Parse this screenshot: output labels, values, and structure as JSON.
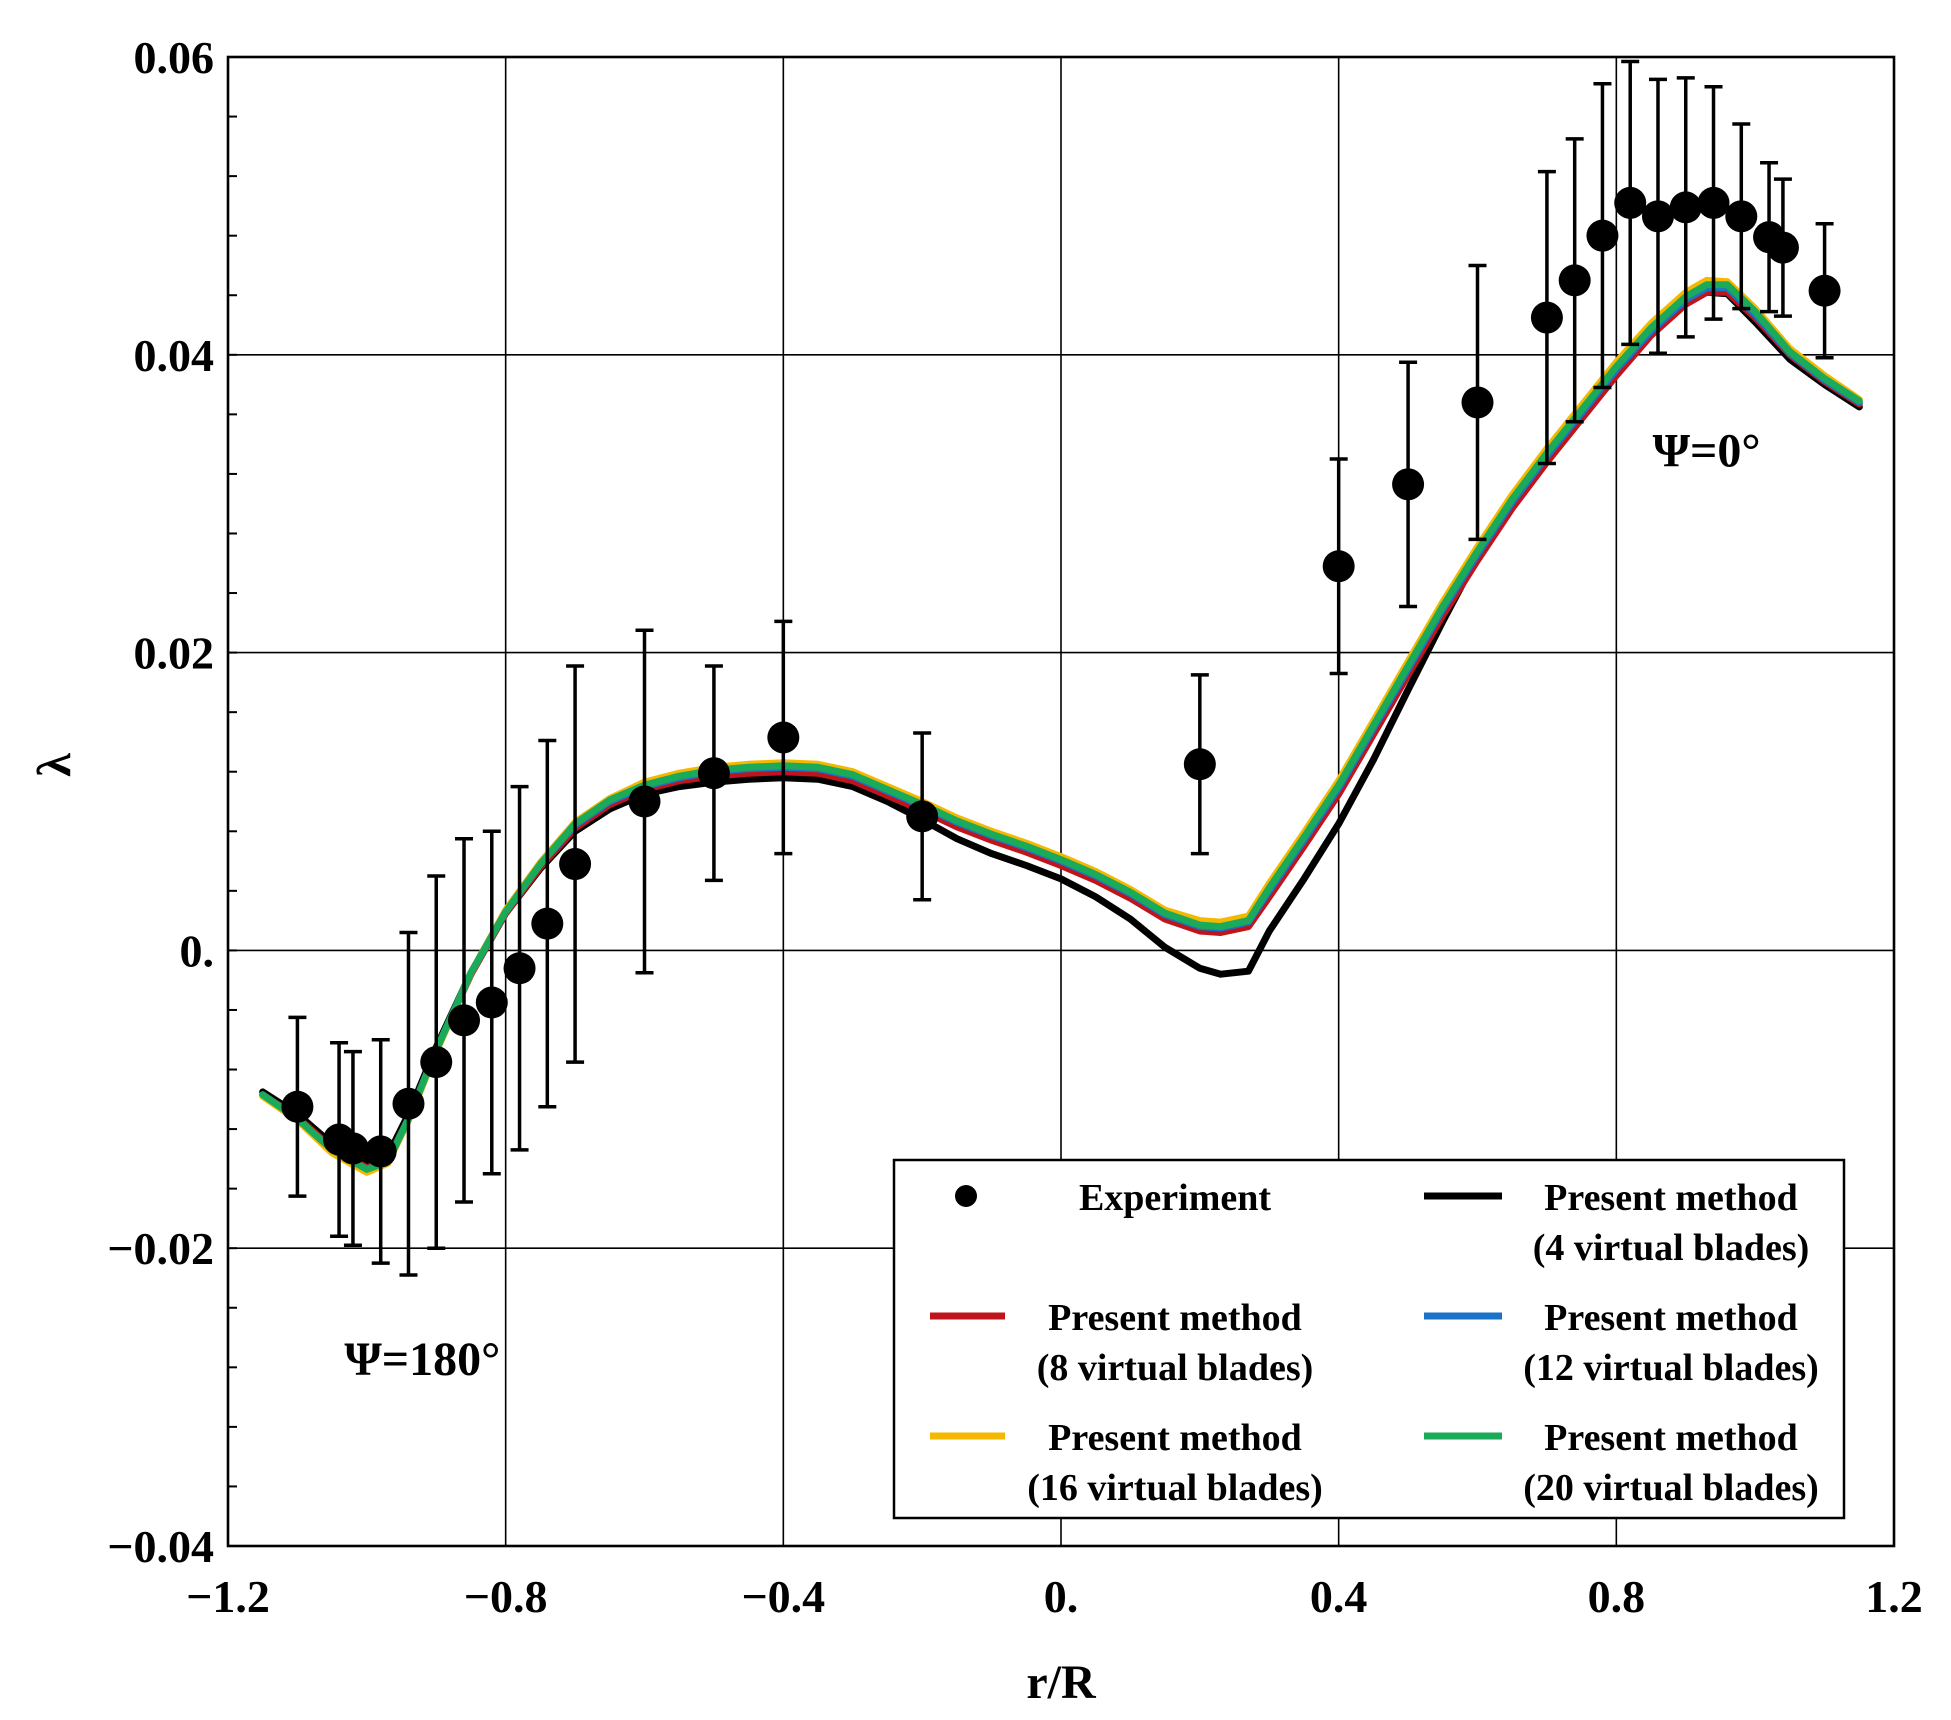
{
  "chart_data": {
    "type": "line",
    "title": "",
    "xlabel": "r/R",
    "ylabel": "λ",
    "xlim": [
      -1.2,
      1.2
    ],
    "ylim": [
      -0.04,
      0.06
    ],
    "grid": true,
    "x_ticks": [
      -1.2,
      -0.8,
      -0.4,
      0.0,
      0.4,
      0.8,
      1.2
    ],
    "x_tick_labels": [
      "−1.2",
      "−0.8",
      "−0.4",
      "0.",
      "0.4",
      "0.8",
      "1.2"
    ],
    "y_ticks": [
      -0.04,
      -0.02,
      0.0,
      0.02,
      0.04,
      0.06
    ],
    "y_tick_labels": [
      "−0.04",
      "−0.02",
      "0.",
      "0.02",
      "0.04",
      "0.06"
    ],
    "legend_position": "bottom-right",
    "annotations": [
      {
        "text": "Ψ=0°",
        "x": 0.93,
        "y": 0.0325
      },
      {
        "text": "Ψ=180°",
        "x": -0.92,
        "y": -0.0285
      }
    ],
    "experiment": {
      "name": "Experiment",
      "points": [
        {
          "x": -1.1,
          "y": -0.0105,
          "err": 0.006
        },
        {
          "x": -1.04,
          "y": -0.0127,
          "err": 0.0065
        },
        {
          "x": -1.02,
          "y": -0.0133,
          "err": 0.0065
        },
        {
          "x": -0.98,
          "y": -0.0135,
          "err": 0.0075
        },
        {
          "x": -0.94,
          "y": -0.0103,
          "err": 0.0115
        },
        {
          "x": -0.9,
          "y": -0.0075,
          "err": 0.0125
        },
        {
          "x": -0.86,
          "y": -0.0047,
          "err": 0.0122
        },
        {
          "x": -0.82,
          "y": -0.0035,
          "err": 0.0115
        },
        {
          "x": -0.78,
          "y": -0.0012,
          "err": 0.0122
        },
        {
          "x": -0.74,
          "y": 0.0018,
          "err": 0.0123
        },
        {
          "x": -0.7,
          "y": 0.0058,
          "err": 0.0133
        },
        {
          "x": -0.6,
          "y": 0.01,
          "err": 0.0115
        },
        {
          "x": -0.5,
          "y": 0.0119,
          "err": 0.0072
        },
        {
          "x": -0.4,
          "y": 0.0143,
          "err": 0.0078
        },
        {
          "x": -0.2,
          "y": 0.009,
          "err": 0.0056
        },
        {
          "x": 0.2,
          "y": 0.0125,
          "err": 0.006
        },
        {
          "x": 0.4,
          "y": 0.0258,
          "err": 0.0072
        },
        {
          "x": 0.5,
          "y": 0.0313,
          "err": 0.0082
        },
        {
          "x": 0.6,
          "y": 0.0368,
          "err": 0.0092
        },
        {
          "x": 0.7,
          "y": 0.0425,
          "err": 0.0098
        },
        {
          "x": 0.74,
          "y": 0.045,
          "err": 0.0095
        },
        {
          "x": 0.78,
          "y": 0.048,
          "err": 0.0102
        },
        {
          "x": 0.82,
          "y": 0.0502,
          "err": 0.0095
        },
        {
          "x": 0.86,
          "y": 0.0493,
          "err": 0.0092
        },
        {
          "x": 0.9,
          "y": 0.0499,
          "err": 0.0087
        },
        {
          "x": 0.94,
          "y": 0.0502,
          "err": 0.0078
        },
        {
          "x": 0.98,
          "y": 0.0493,
          "err": 0.0062
        },
        {
          "x": 1.02,
          "y": 0.0479,
          "err": 0.005
        },
        {
          "x": 1.04,
          "y": 0.0472,
          "err": 0.0046
        },
        {
          "x": 1.1,
          "y": 0.0443,
          "err": 0.0045
        }
      ]
    },
    "x": [
      -1.15,
      -1.1,
      -1.05,
      -1.0,
      -0.97,
      -0.94,
      -0.9,
      -0.85,
      -0.8,
      -0.75,
      -0.7,
      -0.65,
      -0.6,
      -0.55,
      -0.5,
      -0.45,
      -0.4,
      -0.35,
      -0.3,
      -0.25,
      -0.2,
      -0.15,
      -0.1,
      -0.05,
      0.0,
      0.05,
      0.1,
      0.15,
      0.2,
      0.23,
      0.27,
      0.3,
      0.35,
      0.4,
      0.45,
      0.5,
      0.55,
      0.6,
      0.65,
      0.7,
      0.75,
      0.8,
      0.85,
      0.9,
      0.93,
      0.96,
      1.0,
      1.05,
      1.1,
      1.15
    ],
    "series": [
      {
        "name": "Present method (4 virtual blades)",
        "color": "#000000",
        "values": [
          -0.0095,
          -0.011,
          -0.013,
          -0.0142,
          -0.0138,
          -0.011,
          -0.0065,
          -0.0015,
          0.0025,
          0.0055,
          0.008,
          0.0095,
          0.0105,
          0.011,
          0.0113,
          0.0115,
          0.0116,
          0.0115,
          0.011,
          0.01,
          0.0088,
          0.0075,
          0.0065,
          0.0057,
          0.0048,
          0.0036,
          0.0021,
          0.0002,
          -0.0012,
          -0.0016,
          -0.0014,
          0.0013,
          0.0048,
          0.0085,
          0.0128,
          0.0175,
          0.0221,
          0.0265,
          0.0301,
          0.0331,
          0.0361,
          0.039,
          0.0415,
          0.0436,
          0.0442,
          0.0441,
          0.0422,
          0.0397,
          0.038,
          0.0365
        ]
      },
      {
        "name": "Present method (8 virtual blades)",
        "color": "#c0141c",
        "values": [
          -0.0097,
          -0.0112,
          -0.0133,
          -0.0146,
          -0.0141,
          -0.0113,
          -0.0067,
          -0.0016,
          0.0025,
          0.0056,
          0.0082,
          0.0098,
          0.0108,
          0.0114,
          0.0117,
          0.0119,
          0.012,
          0.0119,
          0.0114,
          0.0104,
          0.0094,
          0.0083,
          0.0074,
          0.0066,
          0.0057,
          0.0047,
          0.0035,
          0.0021,
          0.0013,
          0.0012,
          0.0016,
          0.0036,
          0.007,
          0.0105,
          0.0145,
          0.0185,
          0.0225,
          0.0262,
          0.0297,
          0.0328,
          0.0357,
          0.0386,
          0.0413,
          0.0434,
          0.0442,
          0.0442,
          0.0425,
          0.04,
          0.0382,
          0.0367
        ]
      },
      {
        "name": "Present method (12 virtual blades)",
        "color": "#1a73c8",
        "values": [
          -0.0097,
          -0.0113,
          -0.0134,
          -0.0147,
          -0.0142,
          -0.0113,
          -0.0067,
          -0.0015,
          0.0026,
          0.0058,
          0.0084,
          0.01,
          0.011,
          0.0116,
          0.012,
          0.0122,
          0.0123,
          0.0122,
          0.0117,
          0.0107,
          0.0097,
          0.0086,
          0.0077,
          0.0069,
          0.006,
          0.005,
          0.0038,
          0.0024,
          0.0016,
          0.0015,
          0.0019,
          0.004,
          0.0074,
          0.0109,
          0.0149,
          0.0189,
          0.0229,
          0.0266,
          0.0301,
          0.0332,
          0.0361,
          0.039,
          0.0416,
          0.0437,
          0.0445,
          0.0445,
          0.0427,
          0.0401,
          0.0383,
          0.0368
        ]
      },
      {
        "name": "Present method (16 virtual blades)",
        "color": "#f5b800",
        "values": [
          -0.0098,
          -0.0114,
          -0.0136,
          -0.0149,
          -0.0143,
          -0.0114,
          -0.0068,
          -0.0015,
          0.0027,
          0.0059,
          0.0086,
          0.0102,
          0.0113,
          0.0119,
          0.0123,
          0.0125,
          0.0126,
          0.0125,
          0.012,
          0.011,
          0.01,
          0.0089,
          0.008,
          0.0072,
          0.0063,
          0.0053,
          0.0041,
          0.0027,
          0.002,
          0.0019,
          0.0023,
          0.0045,
          0.0079,
          0.0114,
          0.0154,
          0.0194,
          0.0234,
          0.0271,
          0.0306,
          0.0337,
          0.0366,
          0.0395,
          0.0421,
          0.0442,
          0.045,
          0.0449,
          0.0431,
          0.0404,
          0.0386,
          0.037
        ]
      },
      {
        "name": "Present method (20 virtual blades)",
        "color": "#1aaa5a",
        "values": [
          -0.0097,
          -0.0113,
          -0.0134,
          -0.0147,
          -0.0142,
          -0.0113,
          -0.0067,
          -0.0015,
          0.0026,
          0.0058,
          0.0085,
          0.0101,
          0.0111,
          0.0117,
          0.0121,
          0.0123,
          0.0124,
          0.0123,
          0.0118,
          0.0108,
          0.0098,
          0.0087,
          0.0078,
          0.007,
          0.0061,
          0.0051,
          0.0039,
          0.0025,
          0.0017,
          0.0016,
          0.002,
          0.0042,
          0.0076,
          0.0111,
          0.0151,
          0.0191,
          0.0231,
          0.0268,
          0.0303,
          0.0334,
          0.0363,
          0.0392,
          0.0418,
          0.0439,
          0.0447,
          0.0447,
          0.0429,
          0.0402,
          0.0384,
          0.0369
        ]
      }
    ]
  },
  "legend": {
    "experiment_label": "Experiment",
    "entries": [
      {
        "line1": "Present method",
        "line2": "(4 virtual blades)",
        "color": "#000000"
      },
      {
        "line1": "Present method",
        "line2": "(8 virtual blades)",
        "color": "#c0141c"
      },
      {
        "line1": "Present method",
        "line2": "(12 virtual blades)",
        "color": "#1a73c8"
      },
      {
        "line1": "Present method",
        "line2": "(16 virtual blades)",
        "color": "#f5b800"
      },
      {
        "line1": "Present method",
        "line2": "(20 virtual blades)",
        "color": "#1aaa5a"
      }
    ]
  }
}
